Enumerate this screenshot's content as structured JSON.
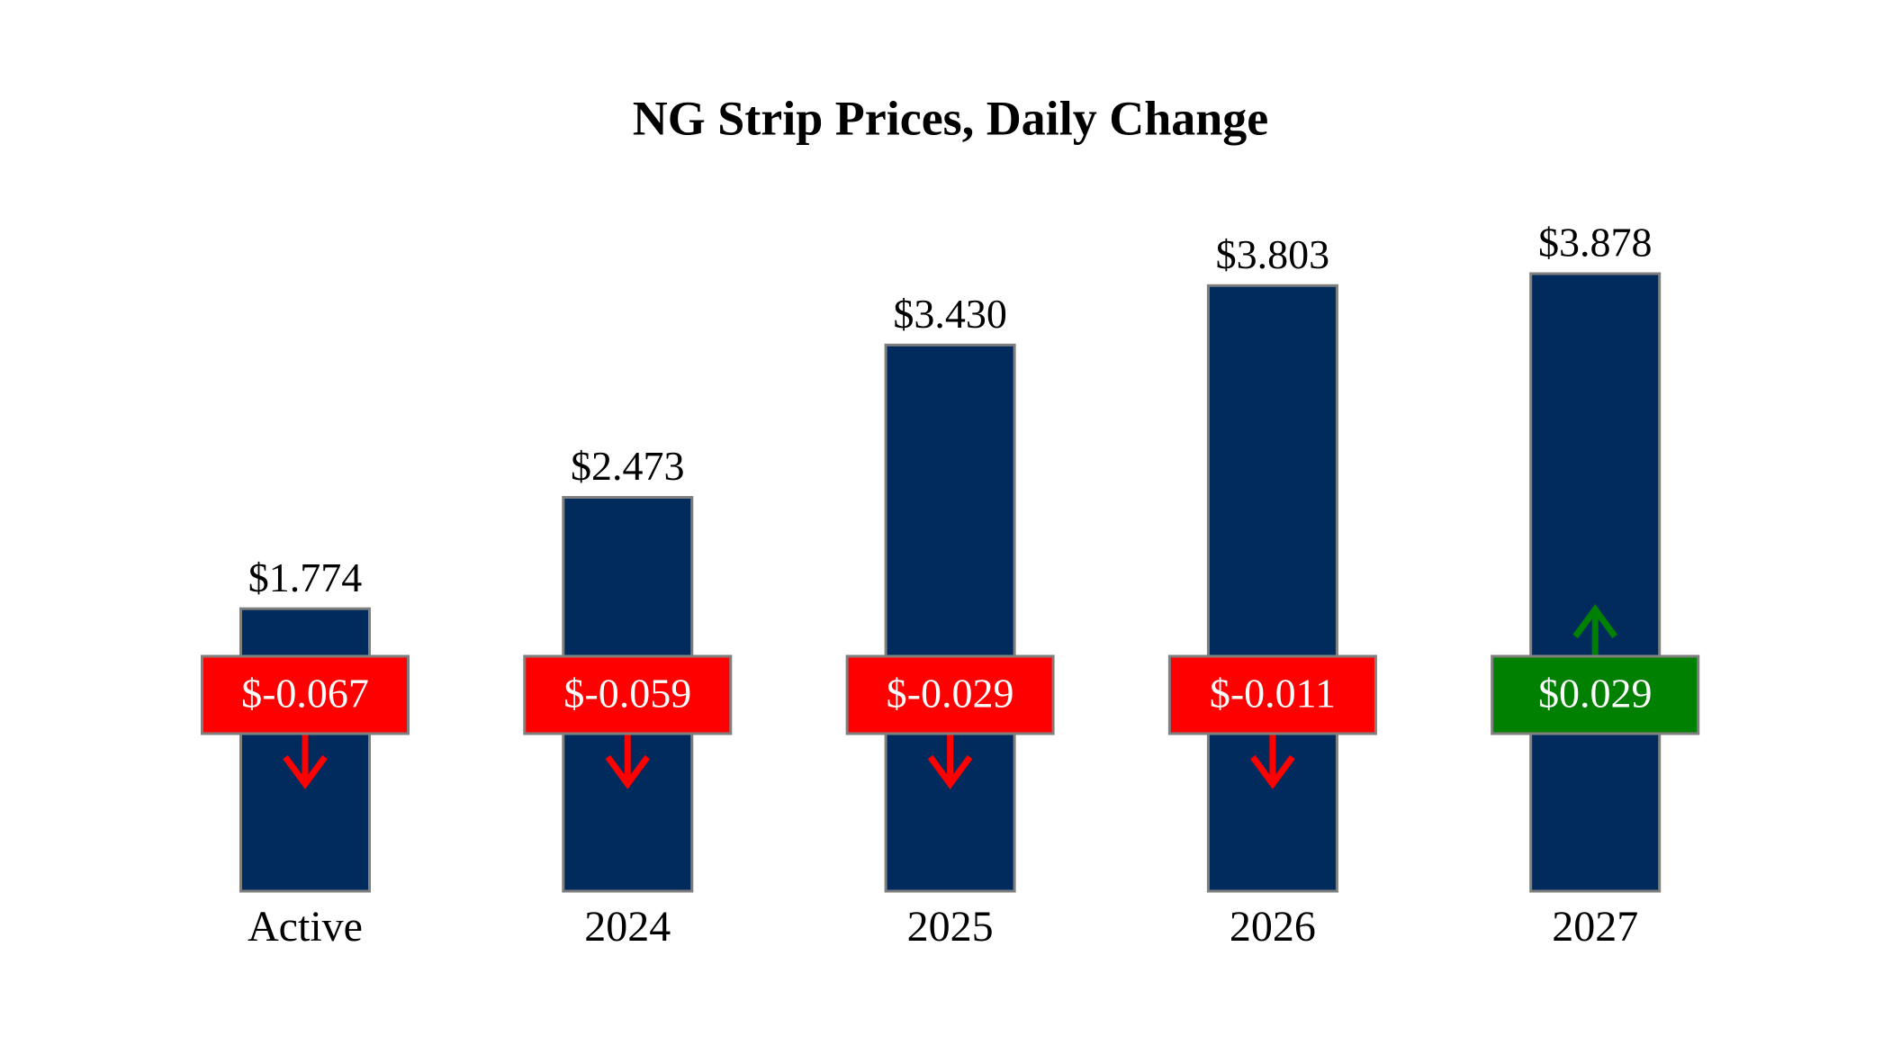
{
  "chart_data": {
    "type": "bar",
    "title": "NG Strip Prices, Daily Change",
    "categories": [
      "Active",
      "2024",
      "2025",
      "2026",
      "2027"
    ],
    "values": [
      1.774,
      2.473,
      3.43,
      3.803,
      3.878
    ],
    "value_labels": [
      "$1.774",
      "$2.473",
      "$3.430",
      "$3.803",
      "$3.878"
    ],
    "color": "#002b5c",
    "changes": [
      -0.067,
      -0.059,
      -0.029,
      -0.011,
      0.029
    ],
    "change_labels": [
      "$-0.067",
      "$-0.059",
      "$-0.029",
      "$-0.011",
      "$0.029"
    ],
    "up_color": "#008000",
    "down_color": "#ff0000"
  }
}
